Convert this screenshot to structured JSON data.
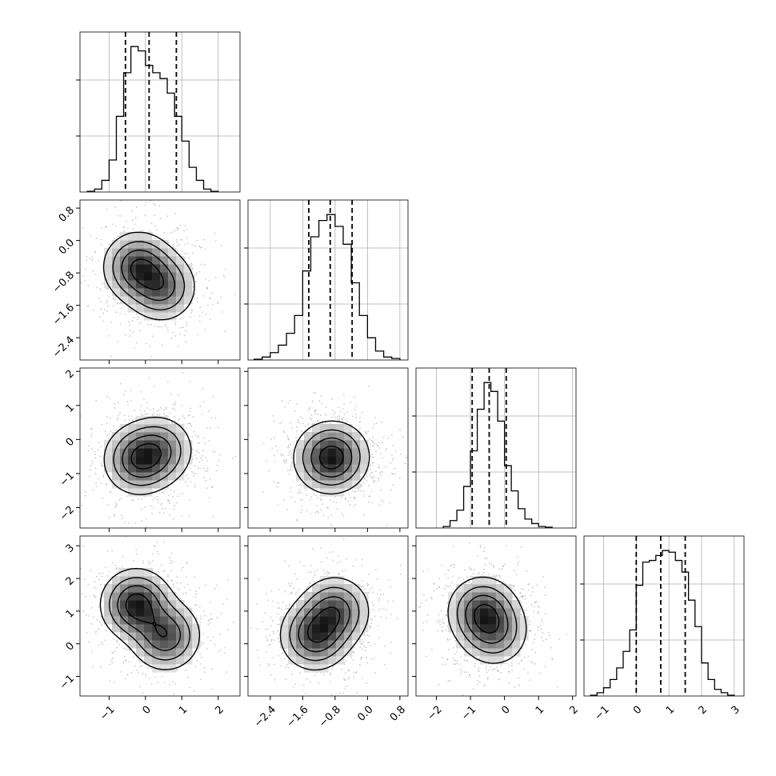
{
  "chart_data": {
    "type": "corner",
    "n_params": 4,
    "grid": true,
    "axes_ticks": [
      {
        "values": [
          -1,
          0,
          1,
          2
        ],
        "labels": [
          "−1",
          "0",
          "1",
          "2"
        ]
      },
      {
        "values": [
          -2.4,
          -1.6,
          -0.8,
          0.0,
          0.8
        ],
        "labels": [
          "−2.4",
          "−1.6",
          "−0.8",
          "0.0",
          "0.8"
        ]
      },
      {
        "values": [
          -2,
          -1,
          0,
          1,
          2
        ],
        "labels": [
          "−2",
          "−1",
          "0",
          "1",
          "2"
        ]
      },
      {
        "values": [
          -1,
          0,
          1,
          2,
          3
        ],
        "labels": [
          "−1",
          "0",
          "1",
          "2",
          "3"
        ]
      }
    ],
    "axes_range": [
      [
        -1.8,
        2.6
      ],
      [
        -2.95,
        1.0
      ],
      [
        -2.6,
        2.1
      ],
      [
        -1.6,
        3.3
      ]
    ],
    "row_tick_params": [
      null,
      1,
      2,
      3
    ],
    "histograms": [
      {
        "param": 0,
        "quantiles": [
          -0.55,
          0.1,
          0.85
        ],
        "bin_edges": [
          -1.6,
          -1.4,
          -1.2,
          -1.0,
          -0.8,
          -0.6,
          -0.4,
          -0.2,
          0.0,
          0.2,
          0.4,
          0.6,
          0.8,
          1.0,
          1.2,
          1.4,
          1.6,
          1.8,
          2.0
        ],
        "counts": [
          0.5,
          2,
          8,
          22,
          52,
          82,
          100,
          97,
          87,
          82,
          78,
          68,
          52,
          35,
          17,
          8,
          2,
          0.5
        ]
      },
      {
        "param": 1,
        "quantiles": [
          -1.45,
          -0.92,
          -0.38
        ],
        "bin_edges": [
          -2.8,
          -2.6,
          -2.4,
          -2.2,
          -2.0,
          -1.8,
          -1.6,
          -1.4,
          -1.2,
          -1.0,
          -0.8,
          -0.6,
          -0.4,
          -0.2,
          0.0,
          0.2,
          0.4,
          0.6,
          0.8
        ],
        "counts": [
          0.5,
          2,
          5,
          10,
          18,
          30,
          60,
          83,
          94,
          98,
          90,
          78,
          52,
          30,
          15,
          6,
          2,
          1
        ]
      },
      {
        "param": 2,
        "quantiles": [
          -0.95,
          -0.45,
          0.05
        ],
        "bin_edges": [
          -1.8,
          -1.6,
          -1.4,
          -1.2,
          -1.0,
          -0.8,
          -0.6,
          -0.4,
          -0.2,
          0.0,
          0.2,
          0.4,
          0.6,
          0.8,
          1.0,
          1.2,
          1.4
        ],
        "counts": [
          1,
          5,
          12,
          28,
          52,
          80,
          98,
          92,
          72,
          42,
          25,
          13,
          6,
          3,
          1,
          0.5
        ]
      },
      {
        "param": 3,
        "quantiles": [
          0.0,
          0.75,
          1.5
        ],
        "bin_edges": [
          -1.4,
          -1.2,
          -1.0,
          -0.8,
          -0.6,
          -0.4,
          -0.2,
          0.0,
          0.2,
          0.4,
          0.6,
          0.8,
          1.0,
          1.2,
          1.4,
          1.6,
          1.8,
          2.0,
          2.2,
          2.4,
          2.6,
          2.8,
          3.0
        ],
        "counts": [
          0.5,
          2,
          5,
          10,
          17,
          27,
          40,
          67,
          81,
          82,
          85,
          88,
          87,
          82,
          75,
          58,
          42,
          20,
          10,
          4,
          2,
          0.5
        ]
      }
    ],
    "pairs": [
      {
        "x_param": 0,
        "y_param": 1,
        "peaks": [
          {
            "x": -0.2,
            "y": -0.65,
            "w": 1.0
          },
          {
            "x": 0.45,
            "y": -1.15,
            "w": 0.8
          }
        ],
        "spread": 0.6
      },
      {
        "x_param": 0,
        "y_param": 2,
        "peaks": [
          {
            "x": -0.2,
            "y": -0.6,
            "w": 1.0
          },
          {
            "x": 0.4,
            "y": -0.3,
            "w": 0.7
          }
        ],
        "spread": 0.6
      },
      {
        "x_param": 1,
        "y_param": 2,
        "peaks": [
          {
            "x": -1.0,
            "y": -0.55,
            "w": 1.0
          },
          {
            "x": -0.75,
            "y": -0.5,
            "w": 0.8
          }
        ],
        "spread": 0.6
      },
      {
        "x_param": 0,
        "y_param": 3,
        "peaks": [
          {
            "x": -0.25,
            "y": 1.2,
            "w": 1.0
          },
          {
            "x": 0.55,
            "y": 0.25,
            "w": 0.8
          }
        ],
        "spread": 0.6
      },
      {
        "x_param": 1,
        "y_param": 3,
        "peaks": [
          {
            "x": -1.3,
            "y": 0.25,
            "w": 1.0
          },
          {
            "x": -0.8,
            "y": 1.0,
            "w": 0.9
          }
        ],
        "spread": 0.6
      },
      {
        "x_param": 2,
        "y_param": 3,
        "peaks": [
          {
            "x": -0.65,
            "y": 1.0,
            "w": 1.0
          },
          {
            "x": -0.3,
            "y": 0.35,
            "w": 0.7
          }
        ],
        "spread": 0.6
      }
    ]
  }
}
